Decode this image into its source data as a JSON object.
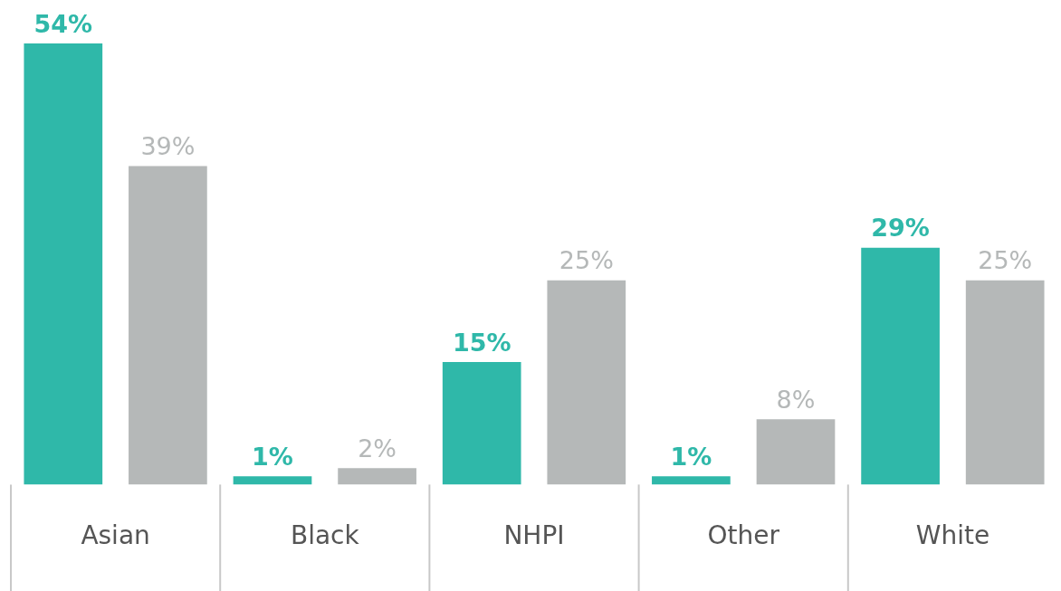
{
  "chart_data": {
    "type": "bar",
    "categories": [
      "Asian",
      "Black",
      "NHPI",
      "Other",
      "White"
    ],
    "series": [
      {
        "color": "#2fb8a9",
        "values": [
          54,
          1,
          15,
          1,
          29
        ],
        "value_labels": [
          "54%",
          "1%",
          "15%",
          "1%",
          "29%"
        ]
      },
      {
        "color": "#b5b8b8",
        "values": [
          39,
          2,
          25,
          8,
          25
        ],
        "value_labels": [
          "39%",
          "2%",
          "25%",
          "8%",
          "25%"
        ]
      }
    ],
    "grid": false,
    "legend": false,
    "tick_labels": "x"
  }
}
